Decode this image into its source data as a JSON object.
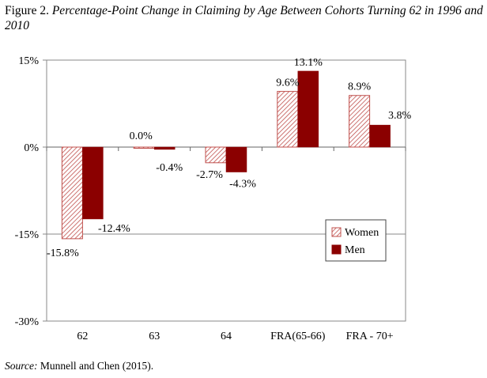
{
  "figure": {
    "caption_lead": "Figure 2.",
    "caption_rest": "Percentage-Point Change in Claiming by Age Between Cohorts Turning 62 in 1996 and 2010"
  },
  "source": {
    "label": "Source:",
    "text": "Munnell and Chen (2015)."
  },
  "chart_data": {
    "type": "bar",
    "title": "",
    "xlabel": "",
    "ylabel": "",
    "categories": [
      "62",
      "63",
      "64",
      "FRA(65-66)",
      "FRA - 70+"
    ],
    "series": [
      {
        "name": "Women",
        "values": [
          -15.8,
          0.0,
          -2.7,
          9.6,
          8.9
        ],
        "labels": [
          "-15.8%",
          "0.0%",
          "-2.7%",
          "9.6%",
          "8.9%"
        ],
        "fill": "hatched",
        "color": "#c0504d"
      },
      {
        "name": "Men",
        "values": [
          -12.4,
          -0.4,
          -4.3,
          13.1,
          3.8
        ],
        "labels": [
          "-12.4%",
          "-0.4%",
          "-4.3%",
          "13.1%",
          "3.8%"
        ],
        "fill": "solid",
        "color": "#8b0000"
      }
    ],
    "ylim": [
      -30,
      15
    ],
    "yticks": [
      15,
      0,
      -15,
      -30
    ],
    "ytick_labels": [
      "15%",
      "0%",
      "-15%",
      "-30%"
    ],
    "grid": true,
    "legend_position": "right"
  }
}
